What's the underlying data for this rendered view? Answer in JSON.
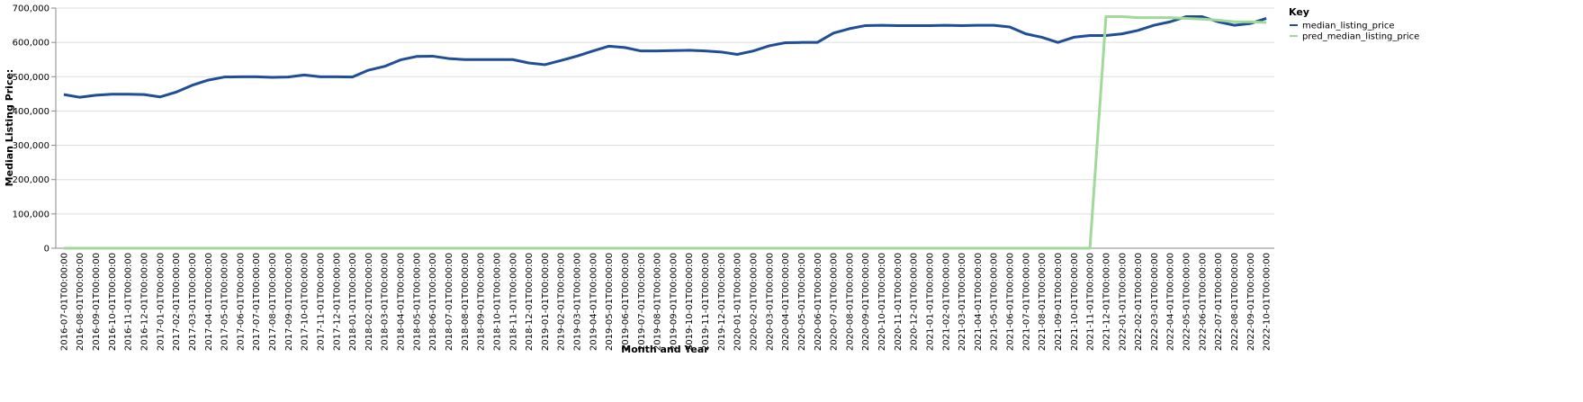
{
  "chart_data": {
    "type": "line",
    "x_label": "Month and Year",
    "y_label": "Median Listing Price:",
    "legend_title": "Key",
    "legend_position": "right",
    "grid": true,
    "ylim": [
      0,
      700000
    ],
    "yticks": [
      0,
      {
        "value": 100000,
        "label": "100,000"
      },
      {
        "value": 200000,
        "label": "200,000"
      },
      {
        "value": 300000,
        "label": "300,000"
      },
      {
        "value": 400000,
        "label": "400,000"
      },
      {
        "value": 500000,
        "label": "500,000"
      },
      {
        "value": 600000,
        "label": "600,000"
      },
      {
        "value": 700000,
        "label": "700,000"
      }
    ],
    "categories": [
      "2016-07-01T00:00:00",
      "2016-08-01T00:00:00",
      "2016-09-01T00:00:00",
      "2016-10-01T00:00:00",
      "2016-11-01T00:00:00",
      "2016-12-01T00:00:00",
      "2017-01-01T00:00:00",
      "2017-02-01T00:00:00",
      "2017-03-01T00:00:00",
      "2017-04-01T00:00:00",
      "2017-05-01T00:00:00",
      "2017-06-01T00:00:00",
      "2017-07-01T00:00:00",
      "2017-08-01T00:00:00",
      "2017-09-01T00:00:00",
      "2017-10-01T00:00:00",
      "2017-11-01T00:00:00",
      "2017-12-01T00:00:00",
      "2018-01-01T00:00:00",
      "2018-02-01T00:00:00",
      "2018-03-01T00:00:00",
      "2018-04-01T00:00:00",
      "2018-05-01T00:00:00",
      "2018-06-01T00:00:00",
      "2018-07-01T00:00:00",
      "2018-08-01T00:00:00",
      "2018-09-01T00:00:00",
      "2018-10-01T00:00:00",
      "2018-11-01T00:00:00",
      "2018-12-01T00:00:00",
      "2019-01-01T00:00:00",
      "2019-02-01T00:00:00",
      "2019-03-01T00:00:00",
      "2019-04-01T00:00:00",
      "2019-05-01T00:00:00",
      "2019-06-01T00:00:00",
      "2019-07-01T00:00:00",
      "2019-08-01T00:00:00",
      "2019-09-01T00:00:00",
      "2019-10-01T00:00:00",
      "2019-11-01T00:00:00",
      "2019-12-01T00:00:00",
      "2020-01-01T00:00:00",
      "2020-02-01T00:00:00",
      "2020-03-01T00:00:00",
      "2020-04-01T00:00:00",
      "2020-05-01T00:00:00",
      "2020-06-01T00:00:00",
      "2020-07-01T00:00:00",
      "2020-08-01T00:00:00",
      "2020-09-01T00:00:00",
      "2020-10-01T00:00:00",
      "2020-11-01T00:00:00",
      "2020-12-01T00:00:00",
      "2021-01-01T00:00:00",
      "2021-02-01T00:00:00",
      "2021-03-01T00:00:00",
      "2021-04-01T00:00:00",
      "2021-05-01T00:00:00",
      "2021-06-01T00:00:00",
      "2021-07-01T00:00:00",
      "2021-08-01T00:00:00",
      "2021-09-01T00:00:00",
      "2021-10-01T00:00:00",
      "2021-11-01T00:00:00",
      "2021-12-01T00:00:00",
      "2022-01-01T00:00:00",
      "2022-02-01T00:00:00",
      "2022-03-01T00:00:00",
      "2022-04-01T00:00:00",
      "2022-05-01T00:00:00",
      "2022-06-01T00:00:00",
      "2022-07-01T00:00:00",
      "2022-08-01T00:00:00",
      "2022-09-01T00:00:00",
      "2022-10-01T00:00:00"
    ],
    "series": [
      {
        "name": "median_listing_price",
        "color": "#1f4e96",
        "values": [
          448000,
          440000,
          446000,
          449000,
          449000,
          448000,
          441000,
          455000,
          475000,
          490000,
          499000,
          499900,
          499900,
          498000,
          499000,
          505000,
          499900,
          499900,
          499000,
          519000,
          530000,
          549000,
          559000,
          559900,
          553000,
          549900,
          550000,
          550000,
          549900,
          540000,
          535000,
          547000,
          560000,
          575000,
          589000,
          585000,
          575000,
          575000,
          576000,
          577000,
          575000,
          572000,
          565000,
          575000,
          590000,
          599000,
          599900,
          600000,
          627000,
          640000,
          649000,
          650000,
          649000,
          649000,
          649000,
          650000,
          649000,
          649900,
          649900,
          645000,
          625000,
          615000,
          600000,
          615000,
          620000,
          620000,
          625000,
          635000,
          650000,
          660000,
          675000,
          675000,
          660000,
          650000,
          655000,
          670000
        ]
      },
      {
        "name": "pred_median_listing_price",
        "color": "#a1d99b",
        "values": [
          0,
          0,
          0,
          0,
          0,
          0,
          0,
          0,
          0,
          0,
          0,
          0,
          0,
          0,
          0,
          0,
          0,
          0,
          0,
          0,
          0,
          0,
          0,
          0,
          0,
          0,
          0,
          0,
          0,
          0,
          0,
          0,
          0,
          0,
          0,
          0,
          0,
          0,
          0,
          0,
          0,
          0,
          0,
          0,
          0,
          0,
          0,
          0,
          0,
          0,
          0,
          0,
          0,
          0,
          0,
          0,
          0,
          0,
          0,
          0,
          0,
          0,
          0,
          0,
          0,
          675000,
          675000,
          672000,
          672000,
          672000,
          670000,
          668000,
          665000,
          660000,
          660000,
          658000
        ]
      }
    ]
  }
}
